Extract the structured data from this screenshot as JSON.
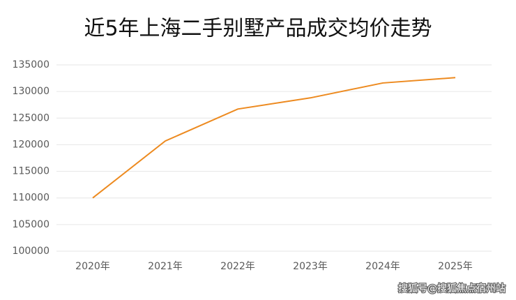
{
  "chart_data": {
    "type": "line",
    "title": "近5年上海二手别墅产品成交均价走势",
    "categories": [
      "2020年",
      "2021年",
      "2022年",
      "2023年",
      "2024年",
      "2025年"
    ],
    "series": [
      {
        "name": "成交均价",
        "color": "#ed8a1f",
        "values": [
          110000,
          120700,
          126700,
          128800,
          131600,
          132600
        ]
      }
    ],
    "ylim": [
      100000,
      135000
    ],
    "yticks": [
      100000,
      105000,
      110000,
      115000,
      120000,
      125000,
      130000,
      135000
    ],
    "grid": true
  },
  "watermark": "搜狐号@搜狐焦点宿州站"
}
